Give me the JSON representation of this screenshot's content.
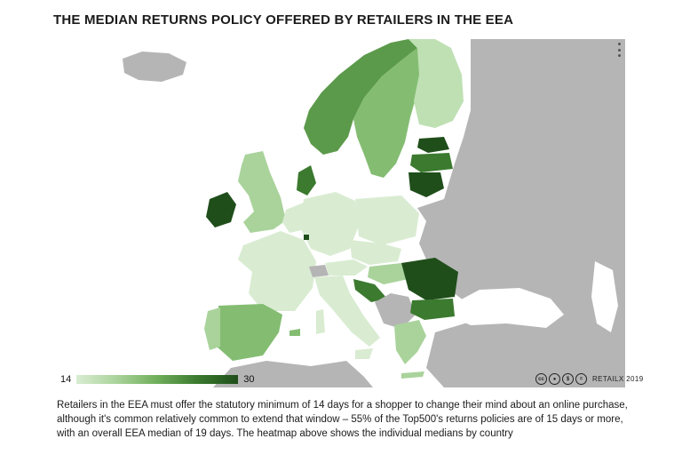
{
  "title": "THE MEDIAN RETURNS POLICY OFFERED BY RETAILERS IN THE EEA",
  "legend": {
    "min": "14",
    "max": "30"
  },
  "credit": {
    "brand": "RETAILX 2019",
    "icons": [
      "cc-icon",
      "by-icon",
      "nc-icon",
      "nd-icon"
    ]
  },
  "caption": "Retailers in the EEA must offer the statutory minimum of 14 days for a shopper to change their mind about an online purchase, although it's common relatively common to extend that window – 55% of the Top500's returns policies are of 15 days or more, with an overall EEA median of 19 days. The heatmap above shows the individual medians by country",
  "colors": {
    "non_eea": "#b5b5b5",
    "lightest": "#d9ecd2",
    "light": "#bfe0b3",
    "mid_light": "#a9d39b",
    "mid": "#84bd72",
    "mid_dark": "#5c9a4b",
    "dark": "#3b7a2f",
    "darkest": "#1f4e1a",
    "sea": "#ffffff"
  }
}
